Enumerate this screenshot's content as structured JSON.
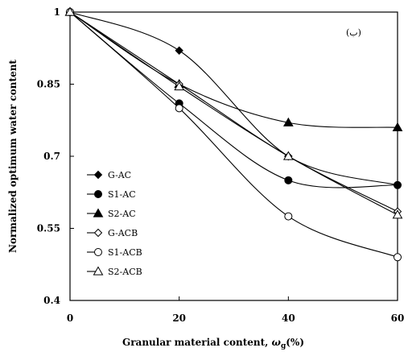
{
  "chart_data": {
    "type": "line",
    "xlabel_main": "Granular material content, ",
    "xlabel_symbol": "ω",
    "xlabel_sub": "g",
    "xlabel_tail": "(%)",
    "ylabel": "Normalized optimum water content",
    "annotation": "(ب)",
    "xlim": [
      0,
      60
    ],
    "ylim": [
      0.4,
      1.0
    ],
    "x_ticks": [
      0,
      20,
      40,
      60
    ],
    "y_ticks": [
      0.4,
      0.55,
      0.7,
      0.85,
      1.0
    ],
    "x_tick_labels": [
      "0",
      "20",
      "40",
      "60"
    ],
    "y_tick_labels": [
      "0.4",
      "0.55",
      "0.7",
      "0.85",
      "1"
    ],
    "grid": false,
    "legend_position": "left",
    "x": [
      0,
      20,
      40,
      60
    ],
    "series": [
      {
        "name": "G-AC",
        "marker": "diamond-filled",
        "values": [
          1.0,
          0.92,
          0.7,
          0.64
        ]
      },
      {
        "name": "S1-AC",
        "marker": "circle-filled",
        "values": [
          1.0,
          0.81,
          0.65,
          0.64
        ]
      },
      {
        "name": "S2-AC",
        "marker": "triangle-filled",
        "values": [
          1.0,
          0.85,
          0.77,
          0.76
        ]
      },
      {
        "name": "G-ACB",
        "marker": "diamond-open",
        "values": [
          1.0,
          0.85,
          0.7,
          0.585
        ]
      },
      {
        "name": "S1-ACB",
        "marker": "circle-open",
        "values": [
          1.0,
          0.8,
          0.575,
          0.49
        ]
      },
      {
        "name": "S2-ACB",
        "marker": "triangle-open",
        "values": [
          1.0,
          0.845,
          0.7,
          0.578
        ]
      }
    ]
  }
}
